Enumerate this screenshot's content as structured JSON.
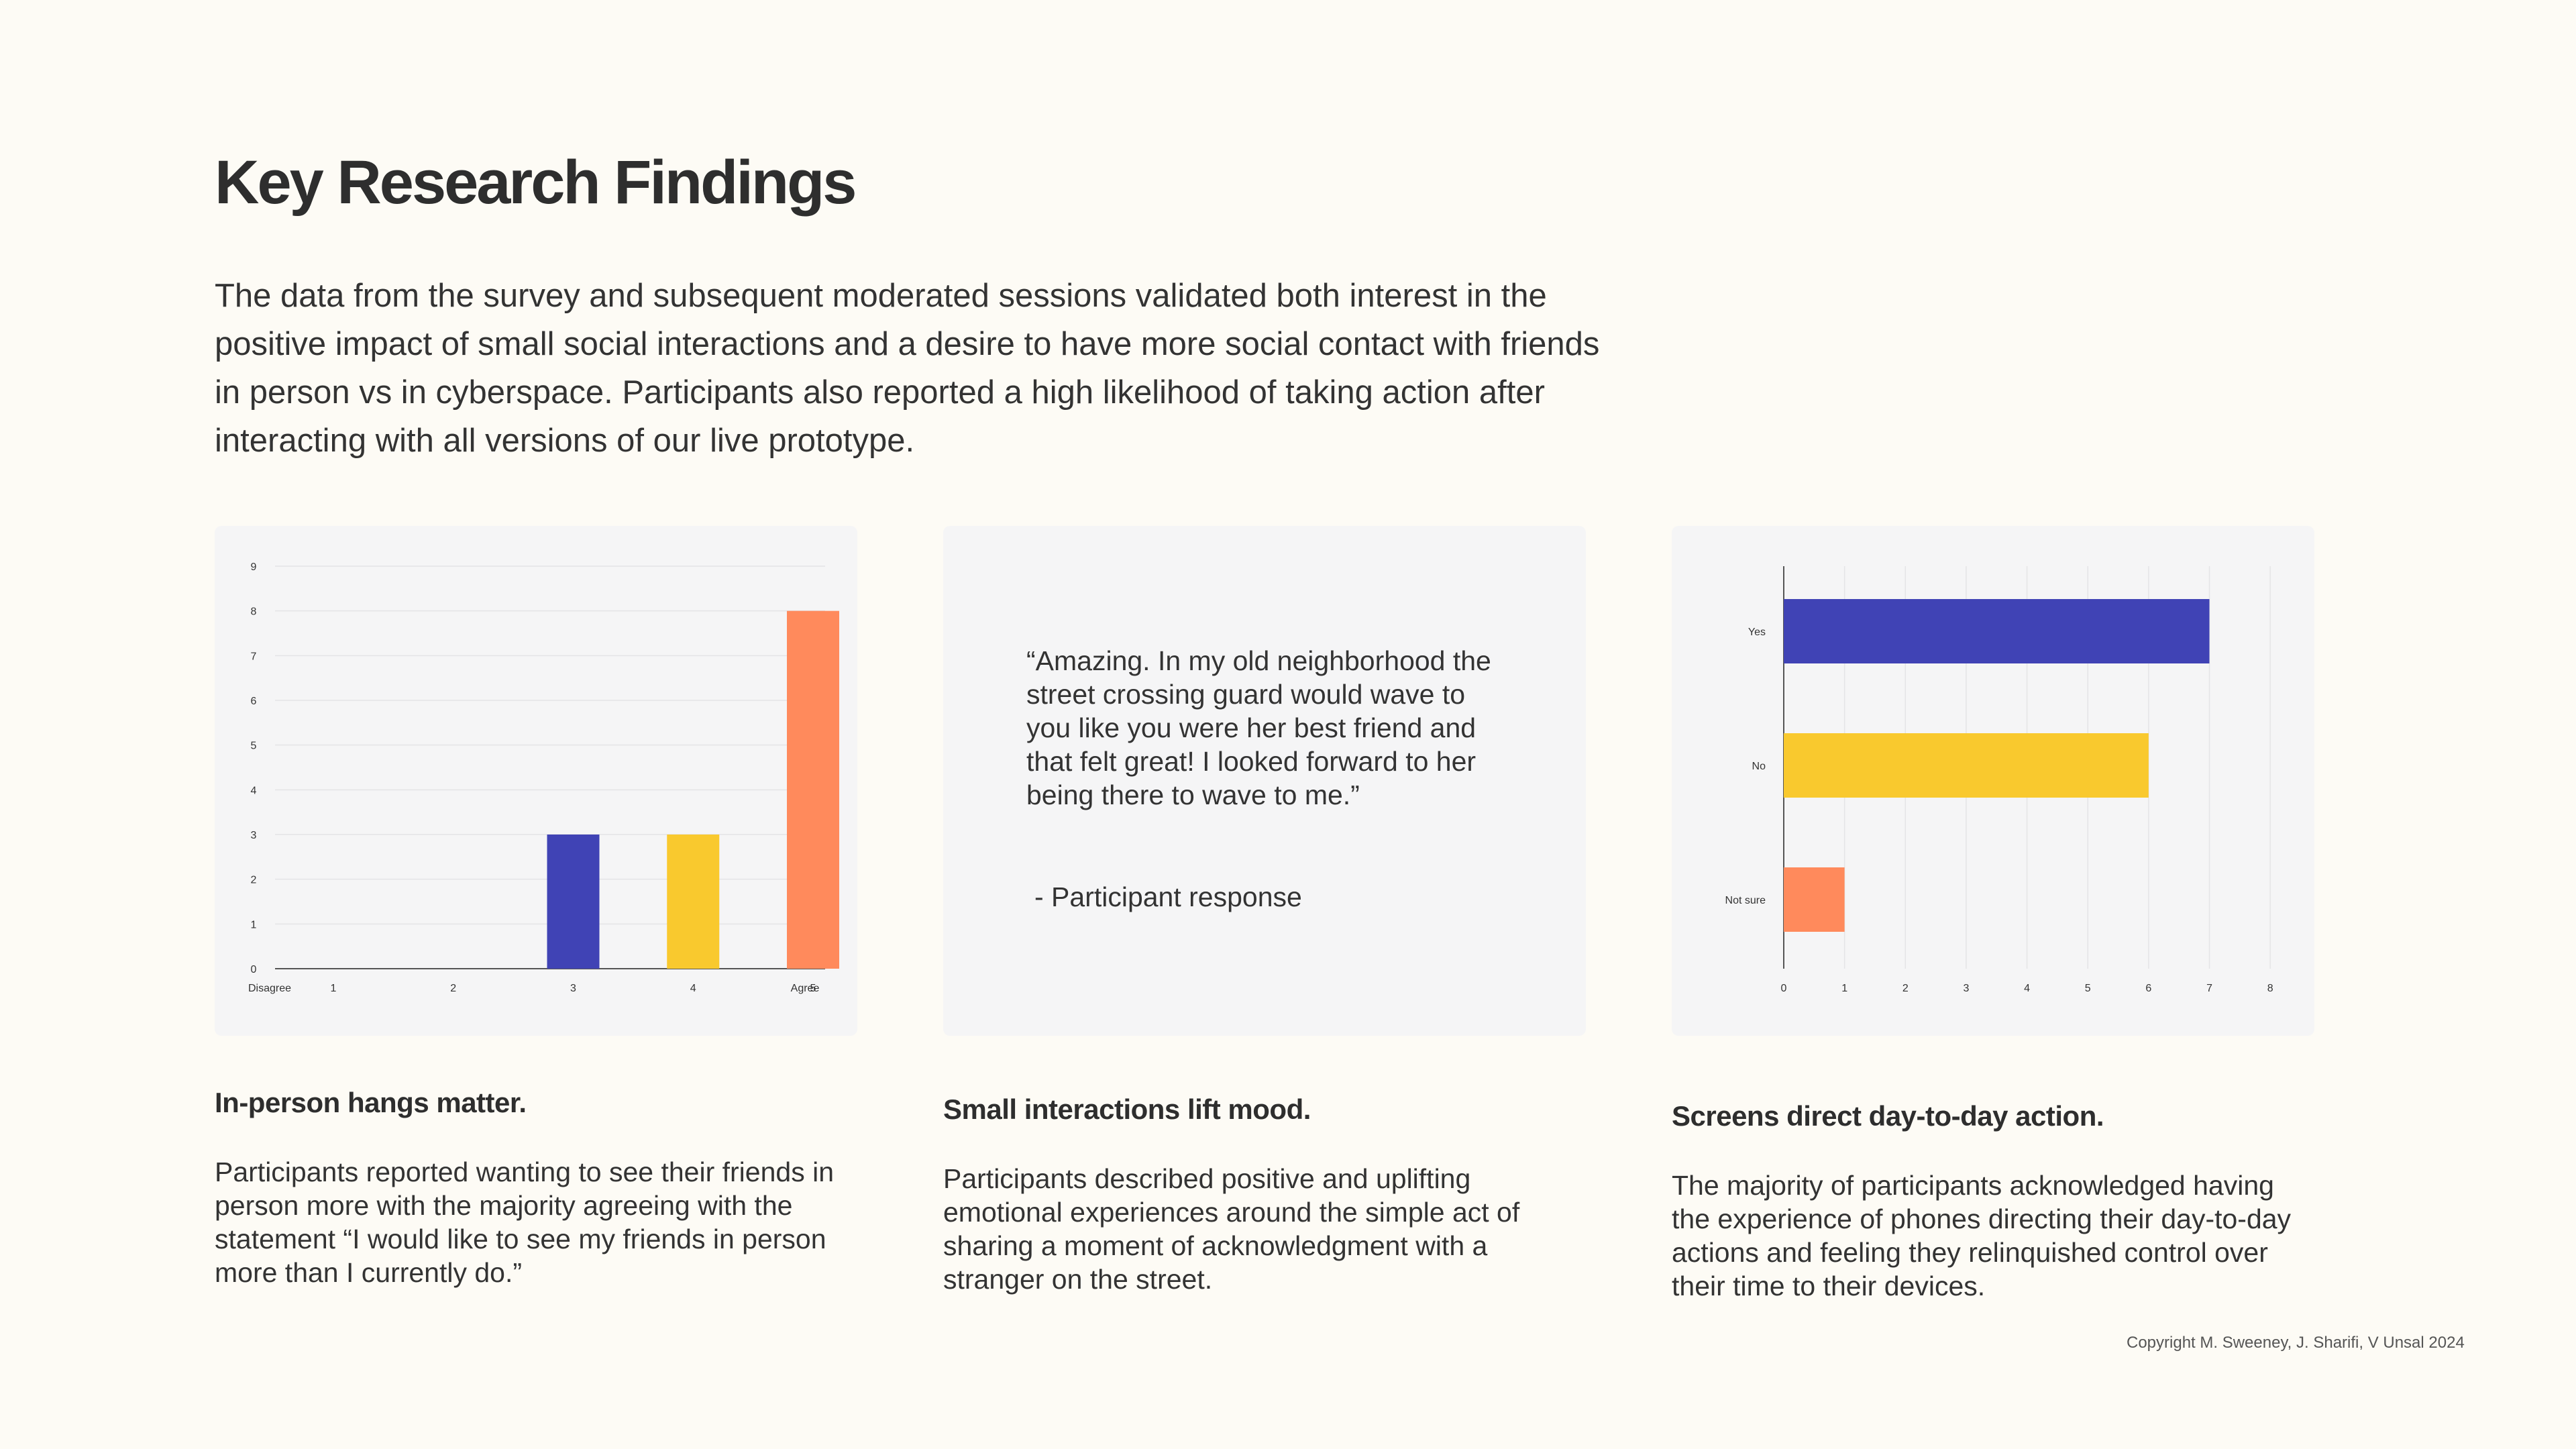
{
  "page": {
    "title": "Key Research Findings",
    "intro": "The data from the survey and subsequent moderated sessions validated both interest in the positive impact of small social interactions and a desire to have more social contact with friends in person vs in cyberspace. Participants also reported a high likelihood of taking action after interacting with all versions of our live prototype.",
    "copyright": "Copyright M. Sweeney, J. Sharifi, V Unsal 2024"
  },
  "colors": {
    "background": "#fdfbf5",
    "card": "#f5f5f6",
    "blue": "#4043b5",
    "yellow": "#f9c92e",
    "orange": "#ff8a5c"
  },
  "chart_data": [
    {
      "type": "bar",
      "orientation": "vertical",
      "categories": [
        "1",
        "2",
        "3",
        "4",
        "5"
      ],
      "values": [
        0,
        0,
        3,
        3,
        8
      ],
      "colors": [
        "#4043b5",
        "#4043b5",
        "#4043b5",
        "#f9c92e",
        "#ff8a5c"
      ],
      "yticks": [
        0,
        1,
        2,
        3,
        4,
        5,
        6,
        7,
        8,
        9
      ],
      "ylim": [
        0,
        9
      ],
      "x_end_labels": {
        "left": "Disagree",
        "right": "Agree"
      },
      "grid": true
    },
    {
      "type": "bar",
      "orientation": "horizontal",
      "categories": [
        "Yes",
        "No",
        "Not sure"
      ],
      "values": [
        7,
        6,
        1
      ],
      "colors": [
        "#4043b5",
        "#f9c92e",
        "#ff8a5c"
      ],
      "xticks": [
        0,
        1,
        2,
        3,
        4,
        5,
        6,
        7,
        8
      ],
      "xlim": [
        0,
        8
      ],
      "grid": true
    }
  ],
  "quote": {
    "text": "“Amazing. In my old neighborhood the street crossing guard would wave to you like you were her best friend and that felt great! I looked forward to her being there to wave to me.”",
    "attribution": "- Participant response"
  },
  "findings": [
    {
      "title": "In-person hangs matter.",
      "body": "Participants reported wanting to see their friends in person more with the majority agreeing with the statement “I would like to see my friends in person more than I currently do.”"
    },
    {
      "title": "Small interactions lift mood.",
      "body": "Participants described positive and uplifting emotional experiences around the simple act of sharing a moment of acknowledgment with a stranger on the street."
    },
    {
      "title": "Screens direct day-to-day action.",
      "body": "The majority of participants acknowledged having the experience of phones directing their day-to-day actions and feeling they relinquished control over their time to their devices."
    }
  ]
}
